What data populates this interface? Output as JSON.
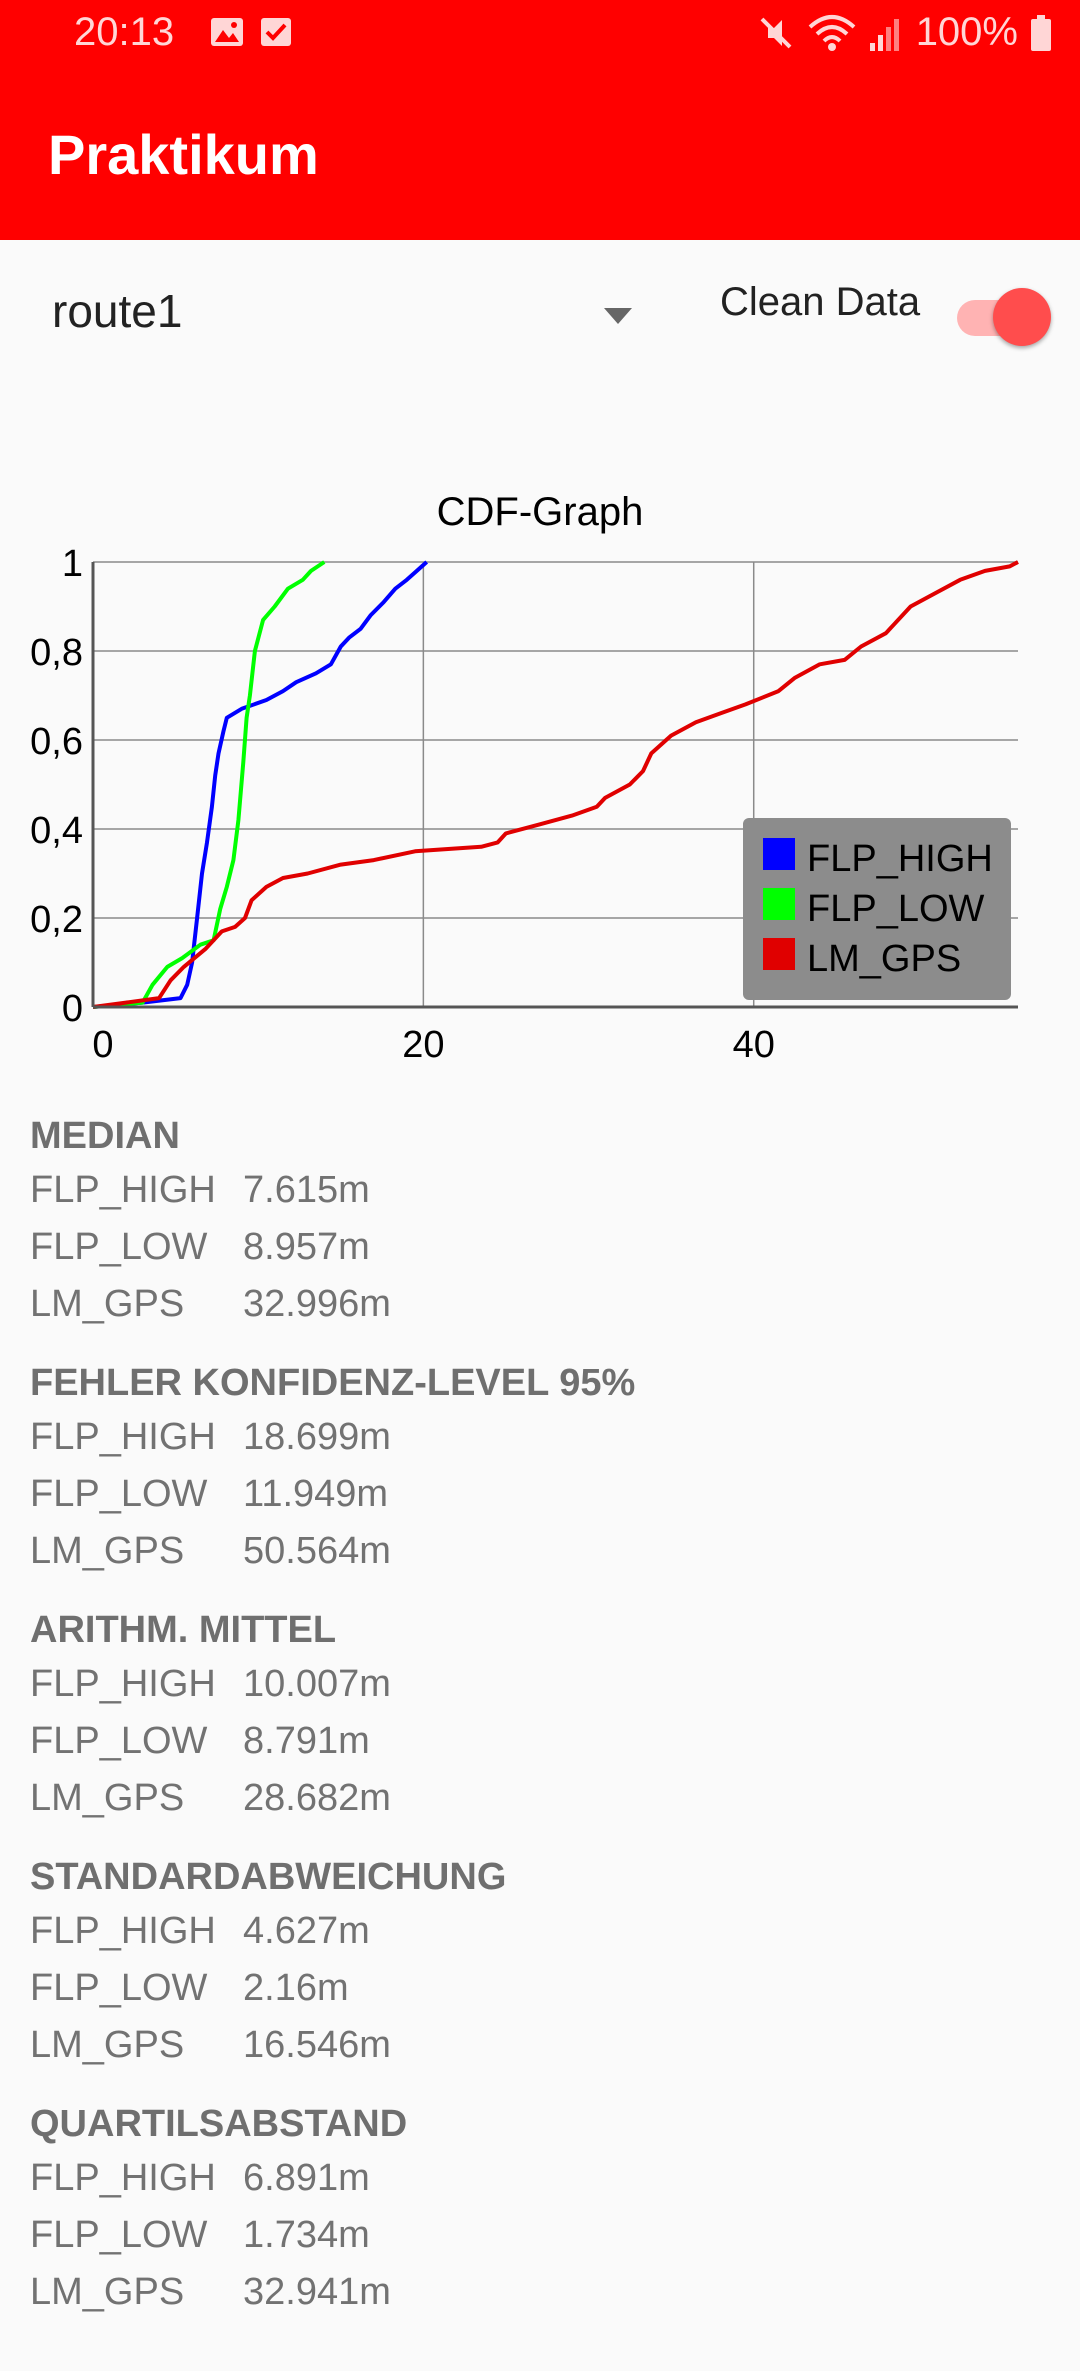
{
  "status_bar": {
    "time": "20:13",
    "battery": "100%",
    "icons_left": [
      "image-icon",
      "checkbox-icon"
    ],
    "icons_right": [
      "mute-icon",
      "wifi-icon",
      "signal-icon",
      "battery-icon"
    ]
  },
  "app_bar": {
    "title": "Praktikum"
  },
  "controls": {
    "route_selected": "route1",
    "clean_data_label": "Clean Data",
    "clean_data_on": true
  },
  "colors": {
    "accent": "#ff0000",
    "switch_thumb": "#ff4d4d",
    "legend_bg": "#8c8c8c"
  },
  "chart_data": {
    "type": "line",
    "title": "CDF-Graph",
    "xlim": [
      0,
      56
    ],
    "ylim": [
      0,
      1
    ],
    "x_ticks": [
      "0",
      "20",
      "40"
    ],
    "y_ticks": [
      "0",
      "0,2",
      "0,4",
      "0,6",
      "0,8",
      "1"
    ],
    "grid": true,
    "legend_position": "bottom-right",
    "series": [
      {
        "name": "FLP_HIGH",
        "color": "#0000ff",
        "points": [
          [
            0,
            0
          ],
          [
            3,
            0.01
          ],
          [
            5.3,
            0.02
          ],
          [
            5.7,
            0.05
          ],
          [
            6,
            0.1
          ],
          [
            6.3,
            0.2
          ],
          [
            6.6,
            0.3
          ],
          [
            6.9,
            0.37
          ],
          [
            7.2,
            0.45
          ],
          [
            7.4,
            0.52
          ],
          [
            7.6,
            0.57
          ],
          [
            7.9,
            0.62
          ],
          [
            8.1,
            0.65
          ],
          [
            9,
            0.67
          ],
          [
            10.5,
            0.69
          ],
          [
            11.5,
            0.71
          ],
          [
            12.3,
            0.73
          ],
          [
            13.5,
            0.75
          ],
          [
            14.4,
            0.77
          ],
          [
            15,
            0.81
          ],
          [
            15.5,
            0.83
          ],
          [
            16.2,
            0.85
          ],
          [
            16.8,
            0.88
          ],
          [
            17.6,
            0.91
          ],
          [
            18.3,
            0.94
          ],
          [
            19,
            0.96
          ],
          [
            19.6,
            0.98
          ],
          [
            20.2,
            1.0
          ]
        ]
      },
      {
        "name": "FLP_LOW",
        "color": "#00ff00",
        "points": [
          [
            0,
            0
          ],
          [
            3,
            0.01
          ],
          [
            3.6,
            0.05
          ],
          [
            4.5,
            0.09
          ],
          [
            5.4,
            0.11
          ],
          [
            6.5,
            0.14
          ],
          [
            7.3,
            0.15
          ],
          [
            7.7,
            0.22
          ],
          [
            8.1,
            0.27
          ],
          [
            8.5,
            0.33
          ],
          [
            8.8,
            0.42
          ],
          [
            9.1,
            0.55
          ],
          [
            9.3,
            0.65
          ],
          [
            9.5,
            0.7
          ],
          [
            9.8,
            0.8
          ],
          [
            10.3,
            0.87
          ],
          [
            11,
            0.9
          ],
          [
            11.8,
            0.94
          ],
          [
            12.7,
            0.96
          ],
          [
            13.2,
            0.98
          ],
          [
            14,
            1.0
          ]
        ]
      },
      {
        "name": "LM_GPS",
        "color": "#e00000",
        "points": [
          [
            0,
            0
          ],
          [
            2,
            0.01
          ],
          [
            4,
            0.02
          ],
          [
            4.7,
            0.06
          ],
          [
            5.5,
            0.09
          ],
          [
            6.8,
            0.13
          ],
          [
            7.8,
            0.17
          ],
          [
            8.6,
            0.18
          ],
          [
            9.2,
            0.2
          ],
          [
            9.6,
            0.24
          ],
          [
            10.5,
            0.27
          ],
          [
            11.5,
            0.29
          ],
          [
            13,
            0.3
          ],
          [
            15,
            0.32
          ],
          [
            17,
            0.33
          ],
          [
            19.5,
            0.35
          ],
          [
            21.5,
            0.355
          ],
          [
            23.5,
            0.36
          ],
          [
            24.5,
            0.37
          ],
          [
            25,
            0.39
          ],
          [
            27,
            0.41
          ],
          [
            29,
            0.43
          ],
          [
            30.5,
            0.45
          ],
          [
            31,
            0.47
          ],
          [
            32.5,
            0.5
          ],
          [
            33.3,
            0.53
          ],
          [
            33.8,
            0.57
          ],
          [
            35,
            0.61
          ],
          [
            36.5,
            0.64
          ],
          [
            38,
            0.66
          ],
          [
            39.5,
            0.68
          ],
          [
            41.5,
            0.71
          ],
          [
            42.5,
            0.74
          ],
          [
            44,
            0.77
          ],
          [
            45.5,
            0.78
          ],
          [
            46.5,
            0.81
          ],
          [
            48,
            0.84
          ],
          [
            48.5,
            0.86
          ],
          [
            49.5,
            0.9
          ],
          [
            51,
            0.93
          ],
          [
            52.5,
            0.96
          ],
          [
            54,
            0.98
          ],
          [
            55.5,
            0.99
          ],
          [
            56,
            1.0
          ]
        ]
      }
    ]
  },
  "stats": [
    {
      "title": "MEDIAN",
      "rows": [
        {
          "name": "FLP_HIGH",
          "value": "7.615m"
        },
        {
          "name": "FLP_LOW",
          "value": "8.957m"
        },
        {
          "name": "LM_GPS",
          "value": "32.996m"
        }
      ]
    },
    {
      "title": "FEHLER KONFIDENZ-LEVEL 95%",
      "rows": [
        {
          "name": "FLP_HIGH",
          "value": "18.699m"
        },
        {
          "name": "FLP_LOW",
          "value": "11.949m"
        },
        {
          "name": "LM_GPS",
          "value": "50.564m"
        }
      ]
    },
    {
      "title": "ARITHM. MITTEL",
      "rows": [
        {
          "name": "FLP_HIGH",
          "value": "10.007m"
        },
        {
          "name": "FLP_LOW",
          "value": "8.791m"
        },
        {
          "name": "LM_GPS",
          "value": "28.682m"
        }
      ]
    },
    {
      "title": "STANDARDABWEICHUNG",
      "rows": [
        {
          "name": "FLP_HIGH",
          "value": "4.627m"
        },
        {
          "name": "FLP_LOW",
          "value": "2.16m"
        },
        {
          "name": "LM_GPS",
          "value": "16.546m"
        }
      ]
    },
    {
      "title": "QUARTILSABSTAND",
      "rows": [
        {
          "name": "FLP_HIGH",
          "value": "6.891m"
        },
        {
          "name": "FLP_LOW",
          "value": "1.734m"
        },
        {
          "name": "LM_GPS",
          "value": "32.941m"
        }
      ]
    }
  ]
}
